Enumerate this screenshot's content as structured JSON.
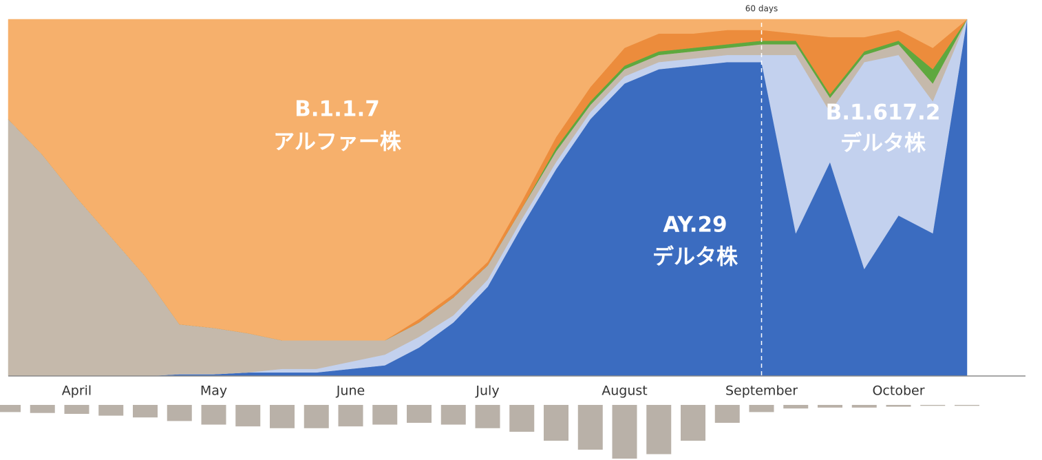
{
  "chart_data": {
    "type": "stacked_area",
    "annotation": "60 days",
    "annotation_at": "September",
    "categories": [
      null,
      null,
      "April",
      null,
      null,
      null,
      "May",
      null,
      null,
      null,
      "June",
      null,
      null,
      null,
      "July",
      null,
      null,
      null,
      "August",
      null,
      null,
      null,
      "September",
      null,
      null,
      null,
      "October",
      null,
      null
    ],
    "series": [
      {
        "name": "AY.29",
        "subtitle": "デルタ株",
        "color": "#3b6cc0",
        "values": [
          0,
          0,
          0,
          0,
          0,
          0.5,
          0.5,
          1,
          1,
          1,
          2,
          3,
          8,
          15,
          25,
          42,
          58,
          72,
          82,
          86,
          87,
          88,
          88,
          40,
          60,
          30,
          45,
          40,
          100
        ]
      },
      {
        "name": "B.1.617.2",
        "subtitle": "デルタ株",
        "color": "#c3d1ee",
        "values": [
          0,
          0,
          0,
          0,
          0,
          0,
          0,
          0,
          1,
          1,
          2,
          3,
          3,
          2,
          2,
          2,
          2,
          2,
          2,
          2,
          2,
          2,
          2,
          50,
          14,
          58,
          45,
          37,
          0
        ]
      },
      {
        "color": "#c5b9ab",
        "values": [
          72,
          62,
          50,
          39,
          28,
          14,
          13,
          11,
          8,
          8,
          6,
          4,
          4,
          5,
          4,
          3,
          3,
          2,
          2,
          2,
          2,
          2,
          3,
          3,
          4,
          2,
          3,
          5,
          0
        ]
      },
      {
        "color": "#5ea83e",
        "values": [
          0,
          0,
          0,
          0,
          0,
          0,
          0,
          0,
          0,
          0,
          0,
          0,
          0,
          0,
          0,
          0,
          1,
          1,
          1,
          1,
          1,
          1,
          1,
          1,
          1,
          1,
          1,
          4,
          0
        ]
      },
      {
        "color": "#ec8c3c",
        "values": [
          0,
          0,
          0,
          0,
          0,
          0,
          0,
          0,
          0,
          0,
          0,
          0,
          1,
          1,
          1,
          2,
          3,
          4,
          5,
          5,
          4,
          4,
          3,
          2,
          16,
          4,
          3,
          6,
          0
        ]
      },
      {
        "name": "B.1.1.7",
        "subtitle": "アルファー株",
        "color": "#f6b06c",
        "values": [
          28,
          38,
          50,
          61,
          72,
          85.5,
          86.5,
          88,
          90,
          90,
          90,
          90,
          84,
          77,
          68,
          51,
          33,
          19,
          8,
          4,
          4,
          3,
          3,
          4,
          5,
          5,
          3,
          8,
          0
        ]
      }
    ],
    "ylim": [
      0,
      100
    ],
    "counts": [
      8,
      9,
      10,
      12,
      14,
      18,
      22,
      24,
      26,
      26,
      24,
      22,
      20,
      22,
      26,
      30,
      40,
      50,
      60,
      55,
      40,
      20,
      8,
      4,
      3,
      3,
      2,
      1,
      1
    ],
    "counts_color": "#b9b1a8"
  }
}
